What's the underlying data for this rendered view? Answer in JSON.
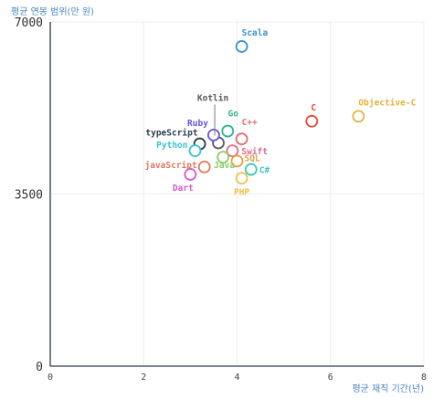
{
  "chart_data": {
    "type": "scatter",
    "title": "",
    "xlabel": "평균 재직 기간(년)",
    "ylabel": "평균 연봉 범위(만 원)",
    "xlim": [
      0,
      8
    ],
    "ylim": [
      0,
      7000
    ],
    "x_ticks": [
      "0",
      "2",
      "4",
      "6",
      "8"
    ],
    "y_ticks": [
      "0",
      "3500",
      "7000"
    ],
    "grid": true,
    "points": [
      {
        "name": "Scala",
        "x": 4.1,
        "y": 6500,
        "color": "#3d8fd1"
      },
      {
        "name": "Objective-C",
        "x": 6.6,
        "y": 5080,
        "color": "#e8b13c"
      },
      {
        "name": "C",
        "x": 5.6,
        "y": 4980,
        "color": "#e34b3b"
      },
      {
        "name": "Kotlin",
        "x": 3.6,
        "y": 4540,
        "color": "#5a5a5a"
      },
      {
        "name": "Go",
        "x": 3.8,
        "y": 4780,
        "color": "#2bb893"
      },
      {
        "name": "Ruby",
        "x": 3.5,
        "y": 4700,
        "color": "#6a55d8"
      },
      {
        "name": "C++",
        "x": 4.1,
        "y": 4620,
        "color": "#e06b6b"
      },
      {
        "name": "typeScript",
        "x": 3.2,
        "y": 4520,
        "color": "#2e3e4e"
      },
      {
        "name": "Python",
        "x": 3.1,
        "y": 4380,
        "color": "#38c3d6"
      },
      {
        "name": "Swift",
        "x": 3.9,
        "y": 4380,
        "color": "#e06c8e"
      },
      {
        "name": "SQL",
        "x": 4.0,
        "y": 4170,
        "color": "#e3a14b"
      },
      {
        "name": "Java",
        "x": 3.7,
        "y": 4250,
        "color": "#88cf6a"
      },
      {
        "name": "C#",
        "x": 4.3,
        "y": 4000,
        "color": "#3fcab0"
      },
      {
        "name": "javaScript",
        "x": 3.3,
        "y": 4050,
        "color": "#e07a5f"
      },
      {
        "name": "PHP",
        "x": 4.1,
        "y": 3820,
        "color": "#f0c04b"
      },
      {
        "name": "Dart",
        "x": 3.0,
        "y": 3900,
        "color": "#d45bd0"
      }
    ]
  }
}
